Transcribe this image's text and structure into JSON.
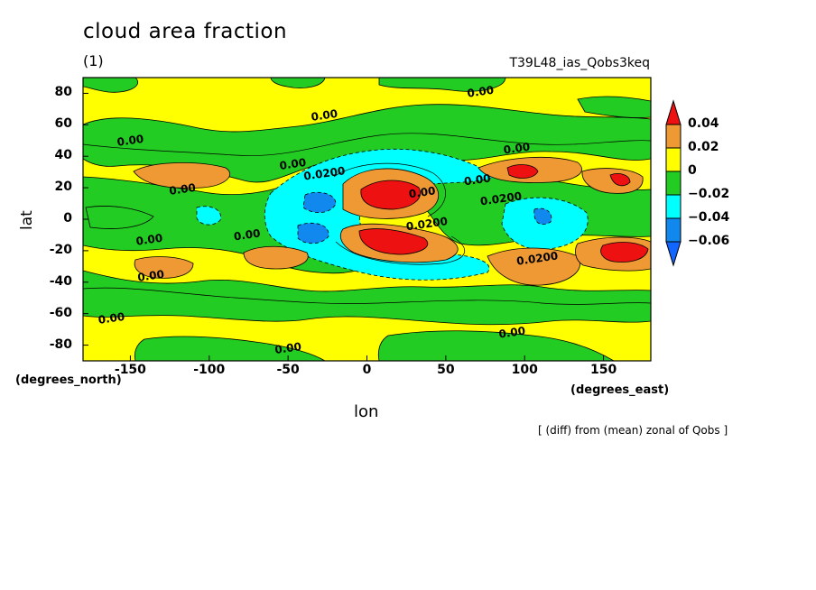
{
  "chart_data": {
    "type": "heatmap",
    "title": "cloud area fraction",
    "subtitle": "(1)",
    "run_name": "T39L48_ias_Qobs3keq",
    "xlabel": "lon",
    "ylabel": "lat",
    "x_units": "(degrees_east)",
    "y_units": "(degrees_north)",
    "note": "[ (diff) from (mean) zonal of Qobs ]",
    "xlim": [
      -180,
      180
    ],
    "ylim": [
      -90,
      90
    ],
    "x_ticks": [
      -150,
      -100,
      -50,
      0,
      50,
      100,
      150
    ],
    "y_ticks": [
      80,
      60,
      40,
      20,
      0,
      -20,
      -40,
      -60,
      -80
    ],
    "colorbar": {
      "levels": [
        -0.06,
        -0.04,
        -0.02,
        0,
        0.02,
        0.04
      ],
      "labels": [
        "0.04",
        "0.02",
        "0",
        "−0.02",
        "−0.04",
        "−0.06"
      ],
      "colors": [
        "#ee1111",
        "#ee9933",
        "#ffff00",
        "#22cc22",
        "#00ffff",
        "#1188ee",
        "#1166ff"
      ]
    },
    "contour_labels": [
      {
        "text": "0.00",
        "lon": -150,
        "lat": 50
      },
      {
        "text": "0.00",
        "lon": -117,
        "lat": 19
      },
      {
        "text": "0.00",
        "lon": -138,
        "lat": -13
      },
      {
        "text": "0.00",
        "lon": -137,
        "lat": -36
      },
      {
        "text": "0.00",
        "lon": -162,
        "lat": -63
      },
      {
        "text": "0.00",
        "lon": -76,
        "lat": -10
      },
      {
        "text": "0.00",
        "lon": -47,
        "lat": 35
      },
      {
        "text": "0.0200",
        "lon": -27,
        "lat": 29
      },
      {
        "text": "0.00",
        "lon": -27,
        "lat": 66
      },
      {
        "text": "0.00",
        "lon": -50,
        "lat": -82
      },
      {
        "text": "0.00",
        "lon": 35,
        "lat": 17
      },
      {
        "text": "0.0200",
        "lon": 38,
        "lat": -3
      },
      {
        "text": "0.00",
        "lon": 70,
        "lat": 25
      },
      {
        "text": "0.0200",
        "lon": 85,
        "lat": 13
      },
      {
        "text": "0.00",
        "lon": 95,
        "lat": 45
      },
      {
        "text": "0.00",
        "lon": 72,
        "lat": 81
      },
      {
        "text": "0.0200",
        "lon": 108,
        "lat": -25
      },
      {
        "text": "0.00",
        "lon": 92,
        "lat": -72
      }
    ],
    "features": [
      {
        "value": 0.04,
        "lon": 10,
        "lat": 13,
        "label": "central positive lobe north"
      },
      {
        "value": 0.04,
        "lon": 18,
        "lat": -15,
        "label": "central positive lobe south"
      },
      {
        "value": 0.04,
        "lon": 97,
        "lat": 30,
        "label": "east positive max north"
      },
      {
        "value": 0.04,
        "lon": 160,
        "lat": -23,
        "label": "east positive max south"
      },
      {
        "value": -0.06,
        "lon": -32,
        "lat": 10,
        "label": "negative core north"
      },
      {
        "value": -0.06,
        "lon": -35,
        "lat": -10,
        "label": "negative core south"
      },
      {
        "value": -0.04,
        "lon": 110,
        "lat": -5,
        "label": "east negative patch"
      }
    ]
  }
}
